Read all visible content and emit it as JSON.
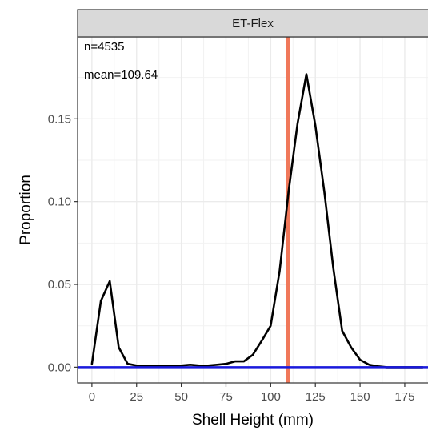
{
  "chart_data": {
    "type": "line",
    "panel_title": "ET-Flex",
    "xlabel": "Shell Height (mm)",
    "ylabel": "Proportion",
    "xlim": [
      -8,
      188
    ],
    "ylim": [
      -0.0095,
      0.1995
    ],
    "xticks": [
      0,
      25,
      50,
      75,
      100,
      125,
      150,
      175
    ],
    "xtick_labels": [
      "0",
      "25",
      "50",
      "75",
      "100",
      "125",
      "150",
      "175"
    ],
    "yticks": [
      0.0,
      0.05,
      0.1,
      0.15
    ],
    "ytick_labels": [
      "0.00",
      "0.05",
      "0.10",
      "0.15"
    ],
    "grid": true,
    "annotations": [
      "n=4535",
      "mean=109.64"
    ],
    "mean_line": {
      "x": 109.64,
      "color": "#f0785a"
    },
    "baseline": {
      "y": 0,
      "color": "#1a1adc"
    },
    "series": [
      {
        "color": "#000000",
        "x": [
          0,
          5,
          10,
          15,
          20,
          25,
          30,
          35,
          40,
          45,
          50,
          55,
          60,
          65,
          70,
          75,
          80,
          85,
          90,
          95,
          100,
          105,
          110,
          115,
          120,
          125,
          130,
          135,
          140,
          145,
          150,
          155,
          160,
          165,
          170,
          175,
          180,
          185
        ],
        "y": [
          0.002,
          0.04,
          0.052,
          0.012,
          0.002,
          0.001,
          0.0005,
          0.001,
          0.001,
          0.0005,
          0.001,
          0.0015,
          0.001,
          0.001,
          0.0015,
          0.002,
          0.0035,
          0.0035,
          0.0075,
          0.016,
          0.025,
          0.058,
          0.106,
          0.147,
          0.177,
          0.146,
          0.106,
          0.06,
          0.022,
          0.012,
          0.0045,
          0.0015,
          0.0005,
          0.0,
          0.0,
          0.0,
          0.0,
          0.0
        ]
      }
    ]
  }
}
